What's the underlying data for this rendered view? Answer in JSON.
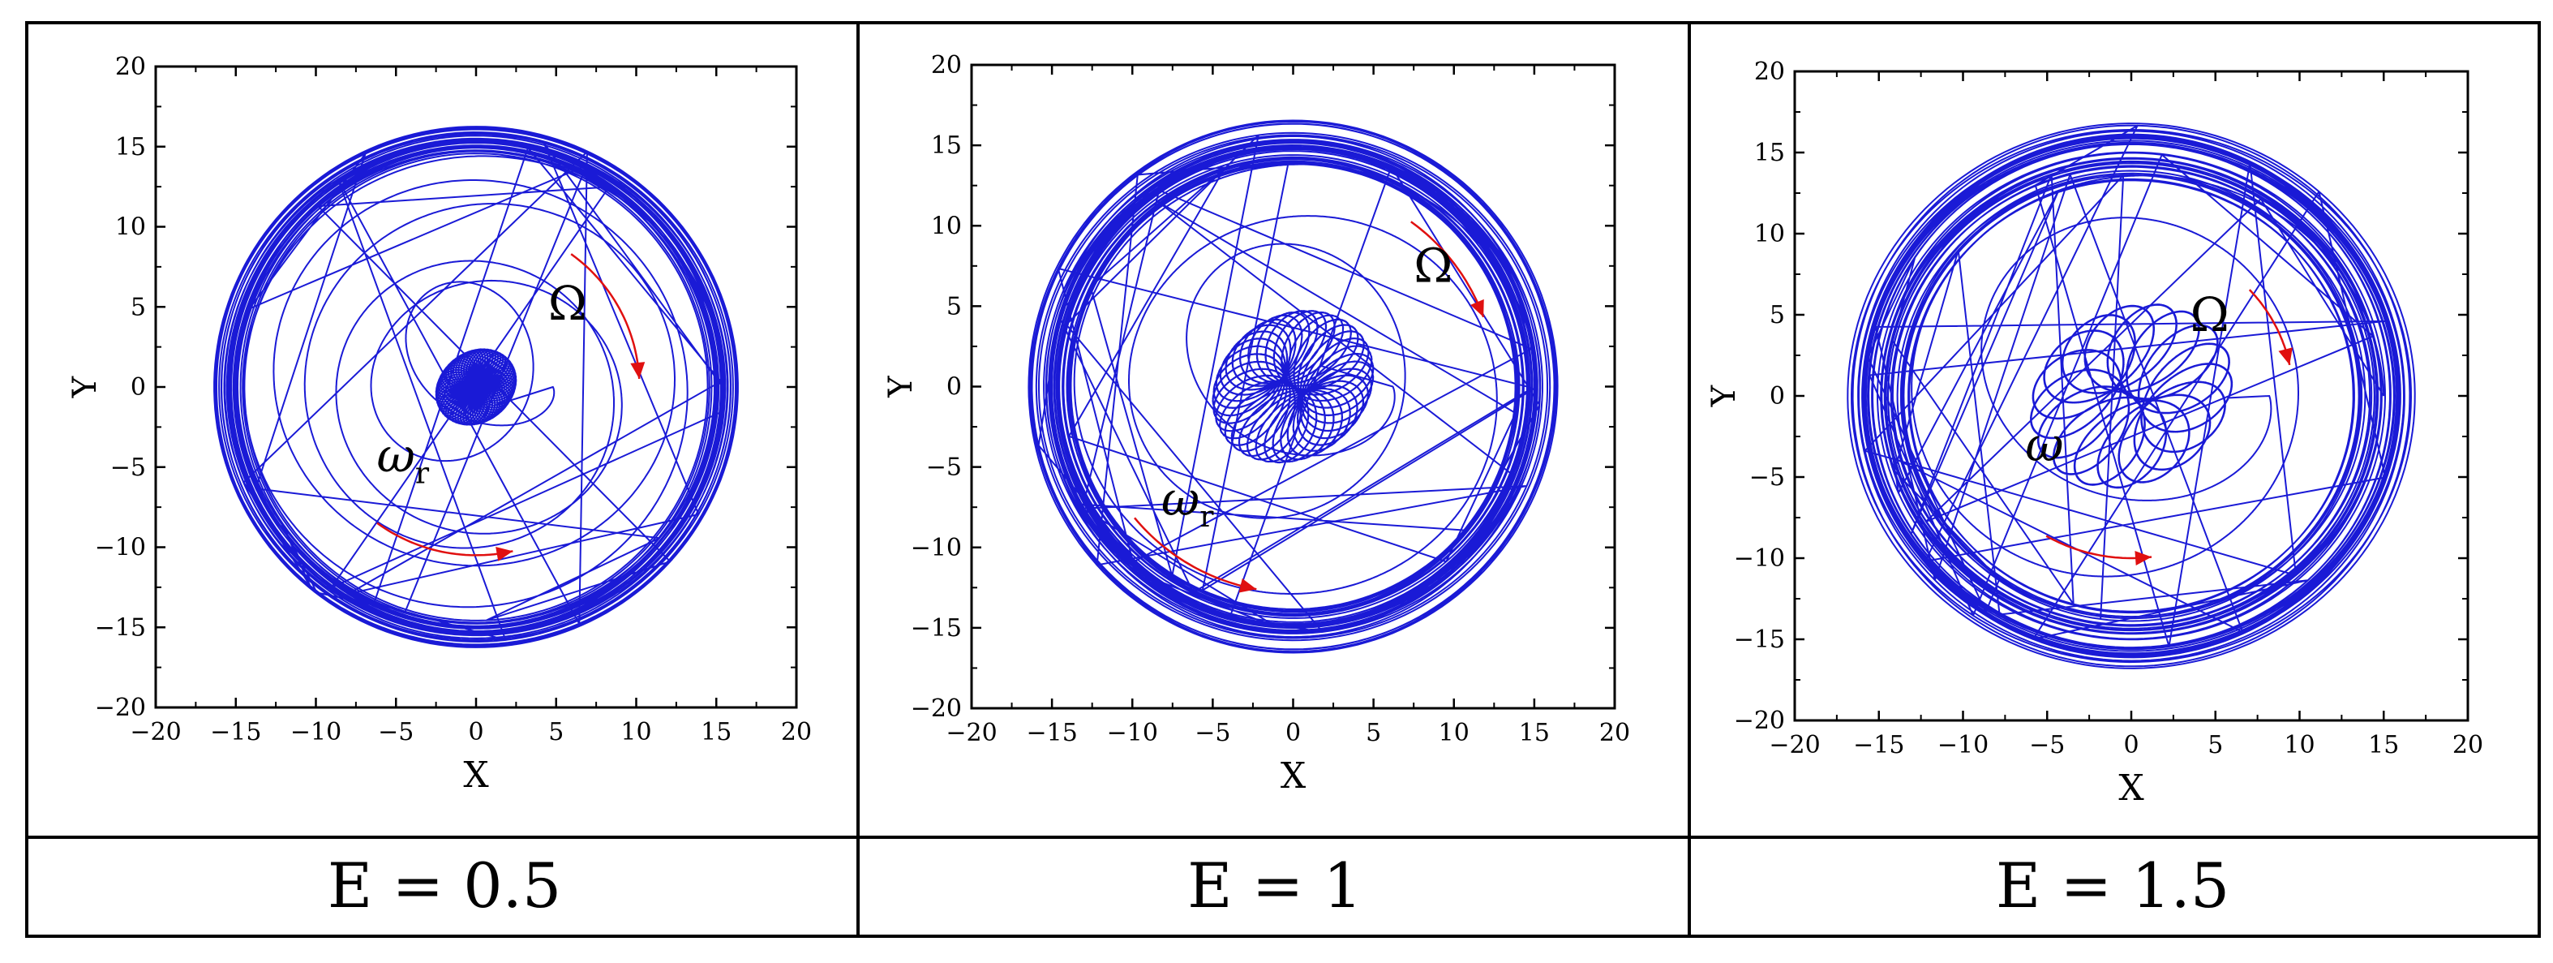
{
  "figure": {
    "captions": [
      "E = 0.5",
      "E = 1",
      "E = 1.5"
    ]
  },
  "colors": {
    "trajectory": "#1a1ad6",
    "arrows": "#e01010",
    "frame": "#000000",
    "background": "#ffffff"
  },
  "chart_data": [
    {
      "type": "line",
      "caption": "E = 0.5",
      "xlabel": "X",
      "ylabel": "Y",
      "xlim": [
        -20,
        20
      ],
      "ylim": [
        -20,
        20
      ],
      "xticks": [
        -20,
        -15,
        -10,
        -5,
        0,
        5,
        10,
        15,
        20
      ],
      "yticks": [
        -20,
        -15,
        -10,
        -5,
        0,
        5,
        10,
        15,
        20
      ],
      "grid": false,
      "legend": "none",
      "annotations": [
        {
          "text": "Ω",
          "x": 4.5,
          "y": 4.2
        },
        {
          "text": "ω",
          "sub": "r",
          "x": -6.2,
          "y": -5.3
        }
      ],
      "series": [
        {
          "style": "spiral trajectory",
          "x_center": 0.0,
          "y_center": 0.0,
          "outer_radius": 15.4,
          "outer_band": 0.9,
          "inner_radius": 2.6,
          "inner_cloud": 2.5,
          "spiral_loops": 6
        }
      ]
    },
    {
      "type": "line",
      "caption": "E = 1",
      "xlabel": "X",
      "ylabel": "Y",
      "xlim": [
        -20,
        20
      ],
      "ylim": [
        -20,
        20
      ],
      "xticks": [
        -20,
        -15,
        -10,
        -5,
        0,
        5,
        10,
        15,
        20
      ],
      "yticks": [
        -20,
        -15,
        -10,
        -5,
        0,
        5,
        10,
        15,
        20
      ],
      "grid": false,
      "legend": "none",
      "annotations": [
        {
          "text": "Ω",
          "x": 7.5,
          "y": 6.5
        },
        {
          "text": "ω",
          "sub": "r",
          "x": -8.2,
          "y": -8.0
        }
      ],
      "series": [
        {
          "style": "spiral trajectory",
          "x_center": 0.0,
          "y_center": 0.0,
          "outer_radius": 15.2,
          "outer_band": 1.4,
          "inner_radius": 4.0,
          "inner_cloud": 5.0,
          "spiral_loops": 3
        }
      ]
    },
    {
      "type": "line",
      "caption": "E = 1.5",
      "xlabel": "X",
      "ylabel": "Y",
      "xlim": [
        -20,
        20
      ],
      "ylim": [
        -20,
        20
      ],
      "xticks": [
        -20,
        -15,
        -10,
        -5,
        0,
        5,
        10,
        15,
        20
      ],
      "yticks": [
        -20,
        -15,
        -10,
        -5,
        0,
        5,
        10,
        15,
        20
      ],
      "grid": false,
      "legend": "none",
      "annotations": [
        {
          "text": "Ω",
          "x": 3.5,
          "y": 4.0
        },
        {
          "text": "ω",
          "sub": "",
          "x": -6.3,
          "y": -4.0
        }
      ],
      "series": [
        {
          "style": "spiral trajectory",
          "x_center": 0.0,
          "y_center": 0.0,
          "outer_radius": 15.0,
          "outer_band": 1.8,
          "inner_radius": 6.0,
          "inner_cloud": 6.0,
          "spiral_loops": 2
        }
      ]
    }
  ]
}
